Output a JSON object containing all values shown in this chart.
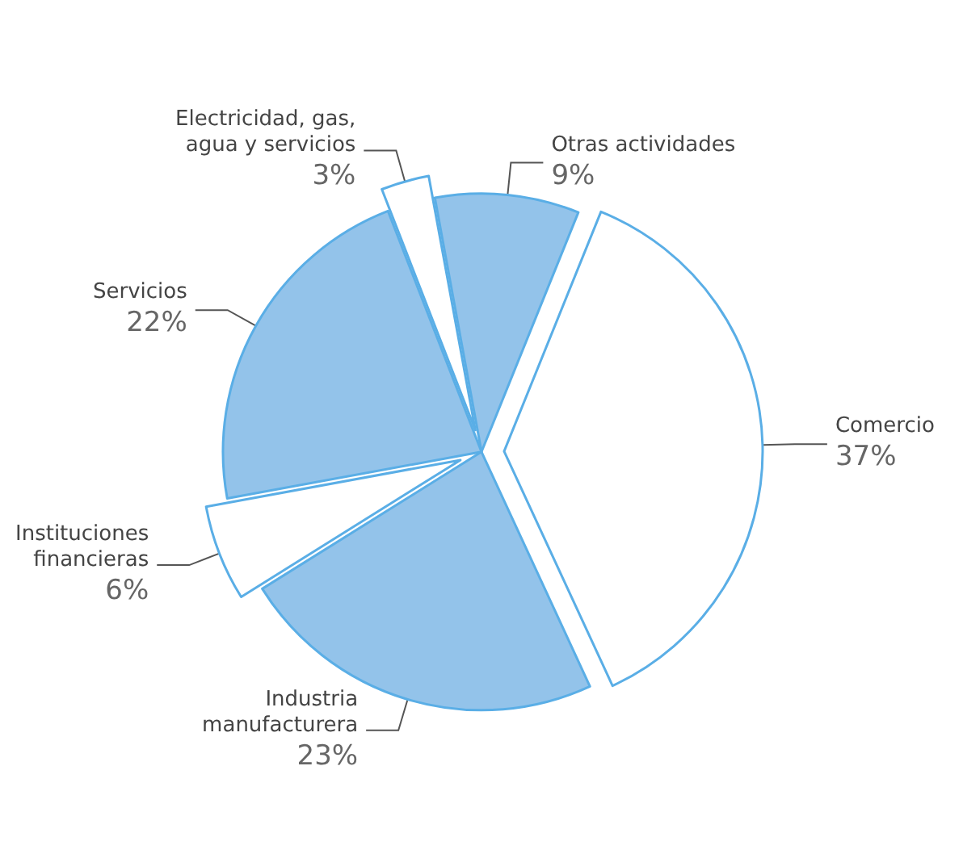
{
  "chart_data": {
    "type": "pie",
    "categories": [
      "Comercio",
      "Industria manufacturera",
      "Instituciones financieras",
      "Servicios",
      "Electricidad, gas, agua y servicios",
      "Otras actividades"
    ],
    "values": [
      37,
      23,
      6,
      22,
      3,
      9
    ],
    "value_labels": [
      "37%",
      "23%",
      "6%",
      "22%",
      "3%",
      "9%"
    ],
    "colors": [
      "#ffffff",
      "#93c3ea",
      "#ffffff",
      "#93c3ea",
      "#ffffff",
      "#93c3ea"
    ],
    "legend": false
  }
}
